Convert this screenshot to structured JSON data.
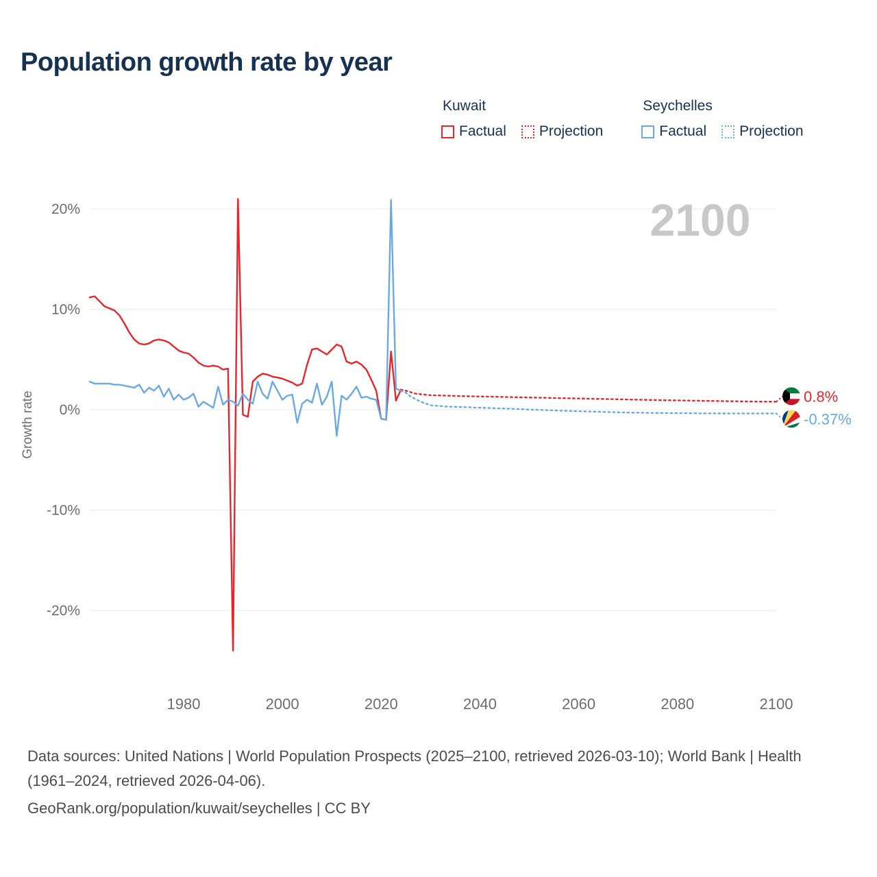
{
  "page": {
    "title": "Population growth rate by year"
  },
  "legend": {
    "groups": [
      {
        "name": "Kuwait",
        "color": "#e8252a",
        "items": [
          {
            "label": "Factual",
            "style": "solid"
          },
          {
            "label": "Projection",
            "style": "dotted"
          }
        ]
      },
      {
        "name": "Seychelles",
        "color": "#68a9e6",
        "items": [
          {
            "label": "Factual",
            "style": "solid"
          },
          {
            "label": "Projection",
            "style": "dotted"
          }
        ]
      }
    ]
  },
  "footer": {
    "sources": "Data sources: United Nations | World Population Prospects (2025–2100, retrieved 2026-03-10); World Bank | Health (1961–2024, retrieved 2026-04-06).",
    "link": "GeoRank.org/population/kuwait/seychelles | CC BY"
  },
  "chart_data": {
    "type": "line",
    "title": "Population growth rate by year",
    "ylabel": "Growth rate",
    "watermark": "2100",
    "grid": "horizontal",
    "legend_position": "top-right",
    "xlim": [
      1961,
      2100
    ],
    "ylim": [
      -26,
      22
    ],
    "yticks": [
      20,
      10,
      0,
      -10,
      -20
    ],
    "ytick_labels": [
      "20%",
      "10%",
      "0%",
      "-10%",
      "-20%"
    ],
    "xticks": [
      1980,
      2000,
      2020,
      2040,
      2060,
      2080,
      2100
    ],
    "xtick_labels": [
      "1980",
      "2000",
      "2020",
      "2040",
      "2060",
      "2080",
      "2100"
    ],
    "series": [
      {
        "id": "kuwait-factual",
        "name": "Kuwait Factual",
        "country": "Kuwait",
        "kind": "factual",
        "color": "#e8252a",
        "dashed": false,
        "x": [
          1961,
          1962,
          1963,
          1964,
          1965,
          1966,
          1967,
          1968,
          1969,
          1970,
          1971,
          1972,
          1973,
          1974,
          1975,
          1976,
          1977,
          1978,
          1979,
          1980,
          1981,
          1982,
          1983,
          1984,
          1985,
          1986,
          1987,
          1988,
          1989,
          1990,
          1991,
          1992,
          1993,
          1994,
          1995,
          1996,
          1997,
          1998,
          1999,
          2000,
          2001,
          2002,
          2003,
          2004,
          2005,
          2006,
          2007,
          2008,
          2009,
          2010,
          2011,
          2012,
          2013,
          2014,
          2015,
          2016,
          2017,
          2018,
          2019,
          2020,
          2021,
          2022,
          2023,
          2024
        ],
        "values": [
          11.2,
          11.3,
          10.8,
          10.3,
          10.1,
          9.9,
          9.4,
          8.6,
          7.7,
          7.0,
          6.6,
          6.5,
          6.6,
          6.9,
          7.0,
          6.9,
          6.7,
          6.3,
          5.9,
          5.7,
          5.6,
          5.2,
          4.7,
          4.4,
          4.3,
          4.4,
          4.3,
          4.0,
          4.1,
          -24.0,
          21.0,
          -0.5,
          -0.7,
          2.8,
          3.3,
          3.6,
          3.5,
          3.3,
          3.2,
          3.1,
          2.9,
          2.7,
          2.4,
          2.6,
          4.5,
          6.0,
          6.1,
          5.8,
          5.5,
          6.0,
          6.5,
          6.3,
          4.8,
          4.6,
          4.8,
          4.5,
          4.0,
          3.0,
          1.9,
          -0.9,
          -1.0,
          5.8,
          0.9,
          2.0
        ]
      },
      {
        "id": "kuwait-projection",
        "name": "Kuwait Projection",
        "country": "Kuwait",
        "kind": "projection",
        "color": "#e8252a",
        "dashed": true,
        "x": [
          2024,
          2025,
          2027,
          2030,
          2035,
          2040,
          2045,
          2050,
          2055,
          2060,
          2065,
          2070,
          2075,
          2080,
          2085,
          2090,
          2095,
          2100
        ],
        "values": [
          2.0,
          1.9,
          1.6,
          1.45,
          1.38,
          1.32,
          1.27,
          1.22,
          1.17,
          1.12,
          1.07,
          1.02,
          0.97,
          0.93,
          0.89,
          0.85,
          0.82,
          0.8
        ]
      },
      {
        "id": "seychelles-factual",
        "name": "Seychelles Factual",
        "country": "Seychelles",
        "kind": "factual",
        "color": "#68a9e6",
        "dashed": false,
        "x": [
          1961,
          1962,
          1963,
          1964,
          1965,
          1966,
          1967,
          1968,
          1969,
          1970,
          1971,
          1972,
          1973,
          1974,
          1975,
          1976,
          1977,
          1978,
          1979,
          1980,
          1981,
          1982,
          1983,
          1984,
          1985,
          1986,
          1987,
          1988,
          1989,
          1990,
          1991,
          1992,
          1993,
          1994,
          1995,
          1996,
          1997,
          1998,
          1999,
          2000,
          2001,
          2002,
          2003,
          2004,
          2005,
          2006,
          2007,
          2008,
          2009,
          2010,
          2011,
          2012,
          2013,
          2014,
          2015,
          2016,
          2017,
          2018,
          2019,
          2020,
          2021,
          2022,
          2023,
          2024
        ],
        "values": [
          2.8,
          2.6,
          2.6,
          2.6,
          2.6,
          2.5,
          2.5,
          2.4,
          2.3,
          2.2,
          2.5,
          1.7,
          2.2,
          1.9,
          2.4,
          1.3,
          2.1,
          1.0,
          1.5,
          1.0,
          1.2,
          1.6,
          0.3,
          0.8,
          0.5,
          0.2,
          2.3,
          0.5,
          1.0,
          0.8,
          0.4,
          1.6,
          1.0,
          0.6,
          2.8,
          1.6,
          1.1,
          2.8,
          1.9,
          1.0,
          1.4,
          1.5,
          -1.3,
          0.6,
          1.0,
          0.7,
          2.6,
          0.5,
          1.3,
          2.8,
          -2.6,
          1.4,
          1.0,
          1.6,
          2.3,
          1.2,
          1.3,
          1.1,
          1.0,
          -0.9,
          -1.0,
          20.9,
          2.1,
          1.9
        ]
      },
      {
        "id": "seychelles-projection",
        "name": "Seychelles Projection",
        "country": "Seychelles",
        "kind": "projection",
        "color": "#68a9e6",
        "dashed": true,
        "x": [
          2024,
          2025,
          2026,
          2028,
          2030,
          2033,
          2036,
          2040,
          2045,
          2050,
          2055,
          2060,
          2065,
          2070,
          2075,
          2080,
          2085,
          2090,
          2095,
          2100
        ],
        "values": [
          1.9,
          1.7,
          1.3,
          0.8,
          0.45,
          0.32,
          0.27,
          0.2,
          0.12,
          0.02,
          -0.07,
          -0.15,
          -0.22,
          -0.28,
          -0.32,
          -0.34,
          -0.36,
          -0.37,
          -0.37,
          -0.37
        ]
      }
    ],
    "end_labels": [
      {
        "country": "Kuwait",
        "label": "0.8%",
        "value": 0.8,
        "color": "#e8252a",
        "flag": "kuwait-flag"
      },
      {
        "country": "Seychelles",
        "label": "-0.37%",
        "value": -0.37,
        "color": "#68a9e6",
        "flag": "seychelles-flag"
      }
    ]
  }
}
